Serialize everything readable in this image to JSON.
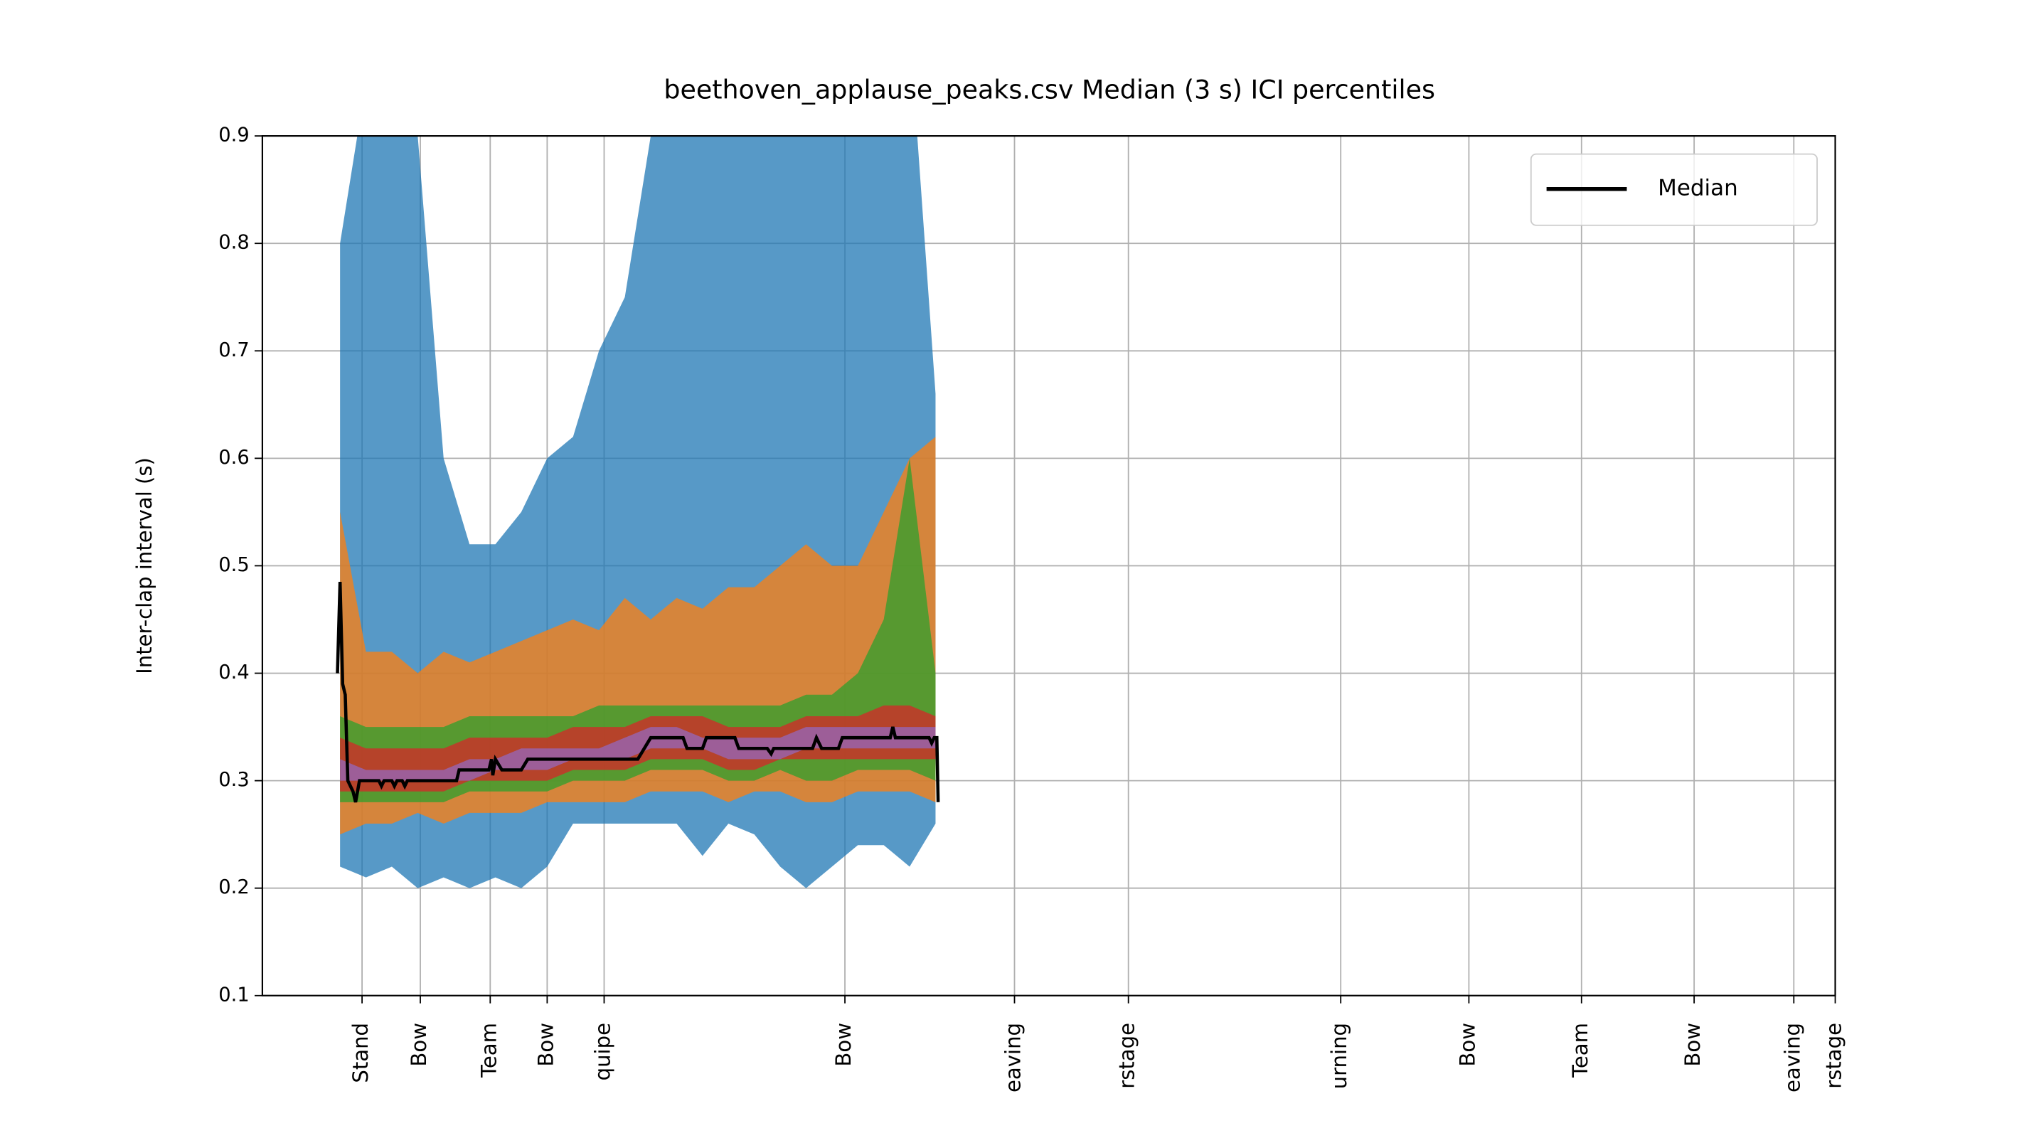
{
  "chart_data": {
    "type": "line",
    "title": "beethoven_applause_peaks.csv Median (3 s) ICI percentiles",
    "ylabel": "Inter-clap interval (s)",
    "xlim": [
      0,
      1215
    ],
    "ylim": [
      0.1,
      0.9
    ],
    "yticks": [
      0.1,
      0.2,
      0.3,
      0.4,
      0.5,
      0.6,
      0.7,
      0.8,
      0.9
    ],
    "xticks": [
      {
        "value": 77,
        "label": "Stand"
      },
      {
        "value": 122,
        "label": "Bow"
      },
      {
        "value": 176,
        "label": "Team"
      },
      {
        "value": 220,
        "label": "Bow"
      },
      {
        "value": 264,
        "label": "quipe"
      },
      {
        "value": 450,
        "label": "Bow"
      },
      {
        "value": 581,
        "label": "eaving"
      },
      {
        "value": 669,
        "label": "rstage"
      },
      {
        "value": 833,
        "label": "urning"
      },
      {
        "value": 932,
        "label": "Bow"
      },
      {
        "value": 1019,
        "label": "Team"
      },
      {
        "value": 1106,
        "label": "Bow"
      },
      {
        "value": 1183,
        "label": "eaving"
      },
      {
        "value": 1215,
        "label": "rstage"
      }
    ],
    "grid": true,
    "legend": "upper right",
    "band_x": [
      60,
      80,
      100,
      120,
      140,
      160,
      180,
      200,
      220,
      240,
      260,
      280,
      300,
      320,
      340,
      360,
      380,
      400,
      420,
      440,
      460,
      480,
      500,
      520
    ],
    "bands": [
      {
        "color": "#1f77b4",
        "upper": [
          0.8,
          0.95,
          1.0,
          0.9,
          0.6,
          0.52,
          0.52,
          0.55,
          0.6,
          0.62,
          0.7,
          0.75,
          0.9,
          1.0,
          1.0,
          1.0,
          1.0,
          1.0,
          1.0,
          1.0,
          1.0,
          1.0,
          1.0,
          0.66
        ],
        "lower": [
          0.22,
          0.21,
          0.22,
          0.2,
          0.21,
          0.2,
          0.21,
          0.2,
          0.22,
          0.26,
          0.26,
          0.26,
          0.26,
          0.26,
          0.23,
          0.26,
          0.25,
          0.22,
          0.2,
          0.22,
          0.24,
          0.24,
          0.22,
          0.26
        ]
      },
      {
        "color": "#ff7f0e",
        "upper": [
          0.55,
          0.42,
          0.42,
          0.4,
          0.42,
          0.41,
          0.42,
          0.43,
          0.44,
          0.45,
          0.44,
          0.47,
          0.45,
          0.47,
          0.46,
          0.48,
          0.48,
          0.5,
          0.52,
          0.5,
          0.5,
          0.55,
          0.6,
          0.62
        ],
        "lower": [
          0.25,
          0.26,
          0.26,
          0.27,
          0.26,
          0.27,
          0.27,
          0.27,
          0.28,
          0.28,
          0.28,
          0.28,
          0.29,
          0.29,
          0.29,
          0.28,
          0.29,
          0.29,
          0.28,
          0.28,
          0.29,
          0.29,
          0.29,
          0.28
        ]
      },
      {
        "color": "#2ca02c",
        "upper": [
          0.36,
          0.35,
          0.35,
          0.35,
          0.35,
          0.36,
          0.36,
          0.36,
          0.36,
          0.36,
          0.37,
          0.37,
          0.37,
          0.37,
          0.37,
          0.37,
          0.37,
          0.37,
          0.38,
          0.38,
          0.4,
          0.45,
          0.6,
          0.4
        ],
        "lower": [
          0.28,
          0.28,
          0.28,
          0.28,
          0.28,
          0.29,
          0.29,
          0.29,
          0.29,
          0.3,
          0.3,
          0.3,
          0.31,
          0.31,
          0.31,
          0.3,
          0.3,
          0.31,
          0.3,
          0.3,
          0.31,
          0.31,
          0.31,
          0.3
        ]
      },
      {
        "color": "#d62728",
        "upper": [
          0.34,
          0.33,
          0.33,
          0.33,
          0.33,
          0.34,
          0.34,
          0.34,
          0.34,
          0.35,
          0.35,
          0.35,
          0.36,
          0.36,
          0.36,
          0.35,
          0.35,
          0.35,
          0.36,
          0.36,
          0.36,
          0.37,
          0.37,
          0.36
        ],
        "lower": [
          0.29,
          0.29,
          0.29,
          0.29,
          0.29,
          0.3,
          0.3,
          0.3,
          0.3,
          0.31,
          0.31,
          0.31,
          0.32,
          0.32,
          0.32,
          0.31,
          0.31,
          0.32,
          0.32,
          0.32,
          0.32,
          0.32,
          0.32,
          0.32
        ]
      },
      {
        "color": "#9467bd",
        "upper": [
          0.32,
          0.31,
          0.31,
          0.31,
          0.31,
          0.32,
          0.32,
          0.33,
          0.33,
          0.33,
          0.33,
          0.34,
          0.35,
          0.35,
          0.34,
          0.34,
          0.34,
          0.34,
          0.35,
          0.35,
          0.35,
          0.35,
          0.35,
          0.35
        ],
        "lower": [
          0.3,
          0.3,
          0.3,
          0.3,
          0.3,
          0.3,
          0.31,
          0.31,
          0.31,
          0.32,
          0.32,
          0.32,
          0.33,
          0.33,
          0.33,
          0.32,
          0.32,
          0.32,
          0.33,
          0.33,
          0.33,
          0.33,
          0.33,
          0.33
        ]
      }
    ],
    "series": [
      {
        "name": "Median",
        "color": "#000000",
        "x": [
          58,
          60,
          62,
          64,
          66,
          70,
          72,
          75,
          90,
          92,
          94,
          100,
          102,
          104,
          108,
          110,
          112,
          150,
          152,
          175,
          177,
          178,
          180,
          185,
          200,
          205,
          290,
          295,
          300,
          325,
          328,
          340,
          343,
          365,
          368,
          390,
          393,
          395,
          425,
          428,
          432,
          445,
          448,
          485,
          487,
          489,
          515,
          517,
          519,
          521,
          522
        ],
        "values": [
          0.4,
          0.485,
          0.39,
          0.38,
          0.3,
          0.29,
          0.28,
          0.3,
          0.3,
          0.295,
          0.3,
          0.3,
          0.295,
          0.3,
          0.3,
          0.295,
          0.3,
          0.3,
          0.31,
          0.31,
          0.32,
          0.305,
          0.32,
          0.31,
          0.31,
          0.32,
          0.32,
          0.33,
          0.34,
          0.34,
          0.33,
          0.33,
          0.34,
          0.34,
          0.33,
          0.33,
          0.325,
          0.33,
          0.33,
          0.34,
          0.33,
          0.33,
          0.34,
          0.34,
          0.35,
          0.34,
          0.34,
          0.335,
          0.34,
          0.34,
          0.28
        ]
      }
    ]
  }
}
